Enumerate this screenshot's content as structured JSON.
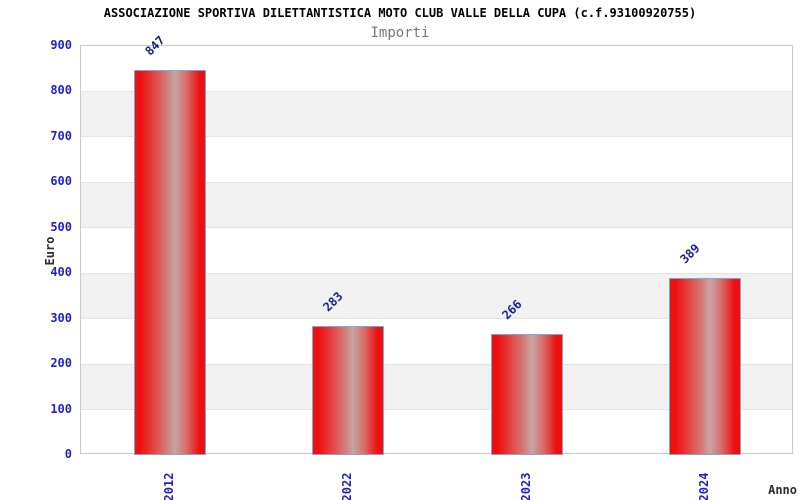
{
  "chart_data": {
    "type": "bar",
    "title": "ASSOCIAZIONE SPORTIVA DILETTANTISTICA MOTO CLUB VALLE DELLA CUPA (c.f.93100920755)",
    "subtitle": "Importi",
    "categories": [
      "2012",
      "2022",
      "2023",
      "2024"
    ],
    "values": [
      847,
      283,
      266,
      389
    ],
    "xlabel": "Anno",
    "ylabel": "Euro",
    "ylim": [
      0,
      900
    ],
    "ytick_step": 100,
    "grid": "horizontal-bands",
    "legend": "none"
  },
  "colors": {
    "background": "#ffffff",
    "title": "#000000",
    "subtitle": "#767676",
    "tick_label": "#2222cc",
    "value_label": "#1c1c8c",
    "axis_label": "#2e2e2e",
    "plot_border": "#c9c9c9",
    "band_fill": "#f1f1f1",
    "bar_border": "#79a8d9",
    "bar_gradient": [
      [
        0,
        "#ee0f0f"
      ],
      [
        8,
        "#ee0f0f"
      ],
      [
        40,
        "#da6a66"
      ],
      [
        57,
        "#c6a5a3"
      ],
      [
        74,
        "#da6a66"
      ],
      [
        92,
        "#ee0f0f"
      ],
      [
        100,
        "#ee0f0f"
      ]
    ]
  }
}
